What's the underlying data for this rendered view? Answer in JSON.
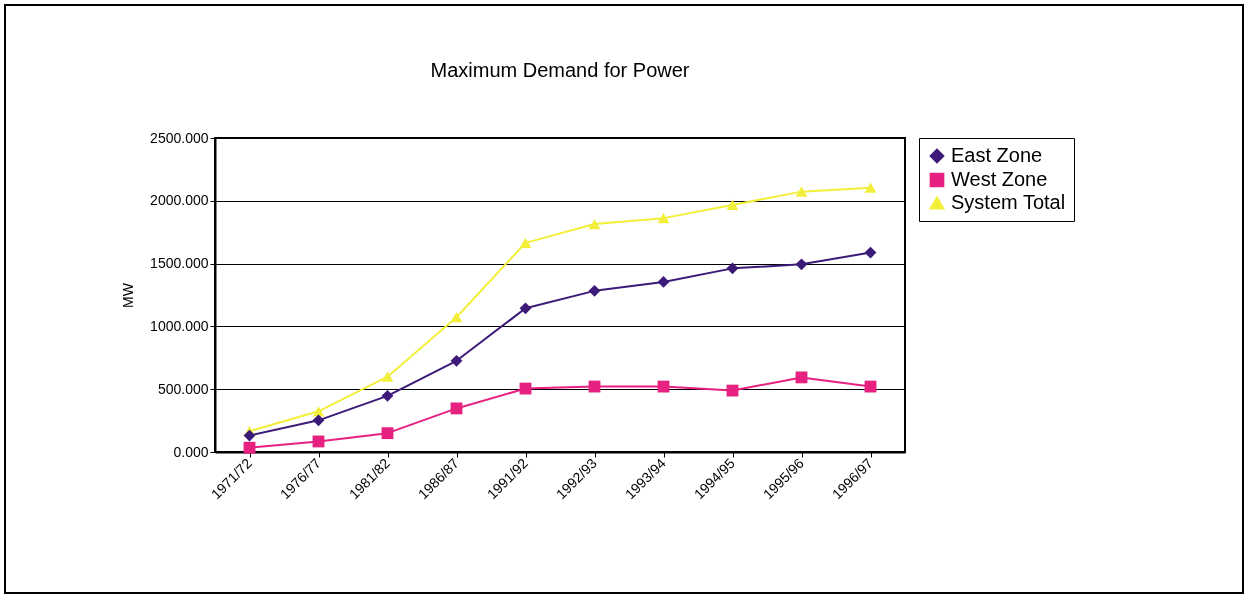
{
  "chart_data": {
    "type": "line",
    "title": "Maximum Demand for Power",
    "ylabel": "MW",
    "categories": [
      "1971/72",
      "1976/77",
      "1981/82",
      "1986/87",
      "1991/92",
      "1992/93",
      "1993/94",
      "1994/95",
      "1995/96",
      "1996/97"
    ],
    "series": [
      {
        "name": "East Zone",
        "color": "#3c1a78",
        "marker": "diamond",
        "values": [
          131,
          252,
          447,
          726,
          1144,
          1283,
          1354,
          1462,
          1494,
          1588
        ]
      },
      {
        "name": "West Zone",
        "color": "#e6217f",
        "marker": "square",
        "values": [
          34,
          84,
          150,
          347,
          505,
          521,
          521,
          489,
          594,
          521
        ]
      },
      {
        "name": "System Total",
        "color": "#f2ee3a",
        "marker": "triangle",
        "values": [
          166,
          324,
          600,
          1073,
          1665,
          1815,
          1862,
          1967,
          2073,
          2104
        ]
      }
    ],
    "ylim": [
      0,
      2500
    ],
    "yticks": [
      {
        "value": 0,
        "label": "0.000"
      },
      {
        "value": 500,
        "label": "500.000"
      },
      {
        "value": 1000,
        "label": "1000.000"
      },
      {
        "value": 1500,
        "label": "1500.000"
      },
      {
        "value": 2000,
        "label": "2000.000"
      },
      {
        "value": 2500,
        "label": "2500.000"
      }
    ],
    "grid": "y",
    "legend": "right"
  }
}
